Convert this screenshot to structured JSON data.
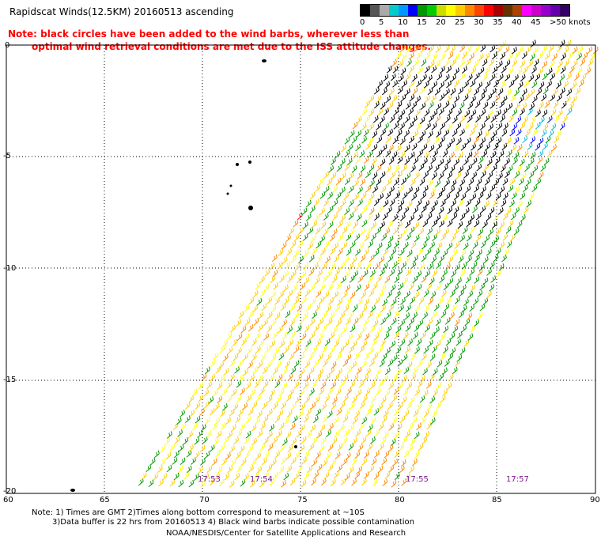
{
  "header": {
    "title": "Rapidscat Winds(12.5KM) 20160513 ascending",
    "note_line1": "Note: black circles have been added to the wind barbs, wherever less than",
    "note_line2": "optimal wind retrieval conditions are met due to the ISS attitude changes."
  },
  "legend": {
    "colors": [
      "#000000",
      "#555555",
      "#aaaaaa",
      "#00cccc",
      "#0099ff",
      "#0000ff",
      "#009900",
      "#00cc00",
      "#ccdd00",
      "#ffff00",
      "#ffcc00",
      "#ff8800",
      "#ff4400",
      "#ff0000",
      "#aa0000",
      "#663300",
      "#aa4400",
      "#ff00ff",
      "#cc00cc",
      "#9900cc",
      "#6600aa",
      "#330066"
    ],
    "labels": [
      "0",
      "5",
      "10",
      "15",
      "20",
      "25",
      "30",
      "35",
      "40",
      "45",
      ">50 knots"
    ]
  },
  "axes": {
    "y_ticks": [
      "0",
      "-5",
      "-10",
      "-15",
      "-20"
    ],
    "x_ticks": [
      "60",
      "65",
      "70",
      "75",
      "80",
      "85",
      "90"
    ]
  },
  "times": [
    "17:53",
    "17:54",
    "17:55",
    "17:57"
  ],
  "footer": {
    "line1": "Note: 1) Times are GMT 2)Times along bottom correspond to measurement at ~10S",
    "line2": "3)Data buffer is 22 hrs from 20160513 4) Black wind barbs indicate possible contamination",
    "line3": "NOAA/NESDIS/Center for Satellite Applications and Research"
  }
}
